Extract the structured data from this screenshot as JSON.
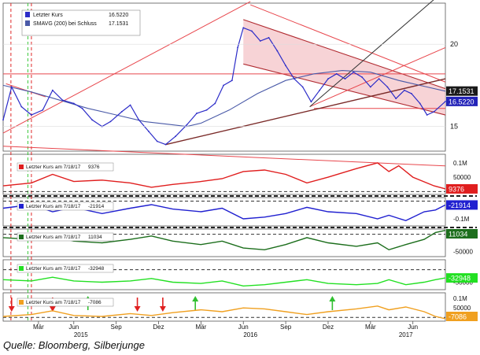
{
  "caption": "Quelle: Bloomberg, Silberjunge",
  "colors": {
    "price": "#2c2cc8",
    "sma": "#4a5aa8",
    "resistance": "#e8464c",
    "channel_fill": "#f4c4c8",
    "channel_edge": "#b02a30",
    "support": "#7a2a28",
    "trend_black": "#333333",
    "vline_red": "#e02828",
    "vline_green": "#38c838",
    "tag_price": "#2323b8",
    "tag_sma": "#1a1a1a",
    "panel1": "#e01e1e",
    "panel2": "#2020d0",
    "panel3": "#1c6e1c",
    "panel4": "#22e022",
    "panel5": "#f0a020",
    "arrow_red": "#e02020",
    "arrow_green": "#30c030"
  },
  "chart_data": [
    {
      "type": "line",
      "legend": [
        {
          "label": "Letzter Kurs",
          "value": "16.5220",
          "color_key": "price"
        },
        {
          "label": "SMAVG (200) bei Schluss",
          "value": "17.1531",
          "color_key": "sma"
        }
      ],
      "ylim": [
        13.5,
        22.5
      ],
      "yticks": [
        15,
        20
      ],
      "ytick_labels": [
        "15",
        "20"
      ],
      "last_value_tags": [
        {
          "label": "17.1531",
          "value": 17.1531,
          "color_key": "tag_sma"
        },
        {
          "label": "16.5220",
          "value": 16.522,
          "color_key": "tag_price"
        }
      ],
      "x_range": [
        0,
        31.3
      ],
      "x_unit": "months since Jan 2015",
      "series": [
        {
          "key": "price",
          "points": [
            [
              0,
              15.4
            ],
            [
              0.6,
              17.4
            ],
            [
              1.3,
              16.2
            ],
            [
              2,
              15.7
            ],
            [
              2.8,
              16.0
            ],
            [
              3.5,
              17.2
            ],
            [
              4.2,
              16.6
            ],
            [
              5,
              16.4
            ],
            [
              5.6,
              16.1
            ],
            [
              6.3,
              15.4
            ],
            [
              7,
              15.0
            ],
            [
              7.6,
              15.3
            ],
            [
              8.4,
              15.9
            ],
            [
              9,
              16.3
            ],
            [
              9.6,
              15.4
            ],
            [
              10.3,
              14.7
            ],
            [
              10.9,
              14.1
            ],
            [
              11.5,
              13.9
            ],
            [
              12.2,
              14.4
            ],
            [
              13,
              15.1
            ],
            [
              13.7,
              15.8
            ],
            [
              14.4,
              16.0
            ],
            [
              15,
              16.4
            ],
            [
              15.6,
              17.5
            ],
            [
              16.2,
              17.8
            ],
            [
              16.6,
              19.8
            ],
            [
              17,
              21.0
            ],
            [
              17.6,
              20.8
            ],
            [
              18.2,
              20.2
            ],
            [
              18.8,
              20.4
            ],
            [
              19.4,
              19.6
            ],
            [
              20,
              18.7
            ],
            [
              20.6,
              17.9
            ],
            [
              21.2,
              17.4
            ],
            [
              21.8,
              16.5
            ],
            [
              22.4,
              17.2
            ],
            [
              23,
              17.9
            ],
            [
              23.6,
              18.2
            ],
            [
              24.2,
              17.9
            ],
            [
              24.8,
              18.3
            ],
            [
              25.4,
              18.0
            ],
            [
              26,
              17.4
            ],
            [
              26.6,
              17.9
            ],
            [
              27.2,
              17.4
            ],
            [
              27.8,
              16.7
            ],
            [
              28.4,
              17.2
            ],
            [
              28.9,
              17.0
            ],
            [
              29.5,
              16.4
            ],
            [
              30,
              15.7
            ],
            [
              30.5,
              15.9
            ],
            [
              31.3,
              16.52
            ]
          ]
        },
        {
          "key": "sma",
          "points": [
            [
              0,
              17.5
            ],
            [
              2,
              17.1
            ],
            [
              4,
              16.6
            ],
            [
              6,
              16.1
            ],
            [
              8,
              15.7
            ],
            [
              10,
              15.3
            ],
            [
              12,
              15.1
            ],
            [
              13,
              15.0
            ],
            [
              14,
              15.2
            ],
            [
              16,
              16.0
            ],
            [
              18,
              17.0
            ],
            [
              20,
              17.8
            ],
            [
              22,
              18.2
            ],
            [
              24,
              18.4
            ],
            [
              26,
              18.3
            ],
            [
              28,
              17.8
            ],
            [
              30,
              17.4
            ],
            [
              31.3,
              17.15
            ]
          ]
        }
      ]
    },
    {
      "type": "line",
      "legend": {
        "label": "Letzter Kurs am 7/18/17",
        "value": "9376"
      },
      "yticks": [
        {
          "v": 100000,
          "label": "0.1M"
        },
        {
          "v": 50000,
          "label": "50000"
        }
      ],
      "ylim": [
        -10000,
        130000
      ],
      "last_value_tag": "9376",
      "color_key": "panel1",
      "points": [
        [
          0,
          20000
        ],
        [
          2,
          30000
        ],
        [
          3.5,
          60000
        ],
        [
          5,
          35000
        ],
        [
          7,
          40000
        ],
        [
          9,
          30000
        ],
        [
          10.5,
          15000
        ],
        [
          12,
          25000
        ],
        [
          14,
          35000
        ],
        [
          15.5,
          45000
        ],
        [
          17,
          70000
        ],
        [
          18.5,
          75000
        ],
        [
          20,
          60000
        ],
        [
          21.5,
          30000
        ],
        [
          23,
          50000
        ],
        [
          25,
          80000
        ],
        [
          26.5,
          100000
        ],
        [
          27.3,
          70000
        ],
        [
          28,
          90000
        ],
        [
          29,
          50000
        ],
        [
          30.5,
          20000
        ],
        [
          31.3,
          9376
        ]
      ]
    },
    {
      "type": "line",
      "legend": {
        "label": "Letzter Kurs am 7/18/17",
        "value": "-21914"
      },
      "yticks": [
        {
          "v": -100000,
          "label": "-0.1M"
        }
      ],
      "ylim": [
        -140000,
        20000
      ],
      "last_value_tag": "-21914",
      "color_key": "panel2",
      "points": [
        [
          0,
          -40000
        ],
        [
          2,
          -20000
        ],
        [
          3.5,
          -60000
        ],
        [
          5,
          -35000
        ],
        [
          7,
          -70000
        ],
        [
          9,
          -40000
        ],
        [
          10.5,
          -20000
        ],
        [
          12,
          -45000
        ],
        [
          14,
          -60000
        ],
        [
          15.5,
          -40000
        ],
        [
          17,
          -100000
        ],
        [
          18.5,
          -90000
        ],
        [
          20,
          -70000
        ],
        [
          21.5,
          -35000
        ],
        [
          23,
          -60000
        ],
        [
          25,
          -70000
        ],
        [
          26.5,
          -100000
        ],
        [
          27.3,
          -80000
        ],
        [
          28.5,
          -110000
        ],
        [
          29.8,
          -60000
        ],
        [
          30.6,
          -50000
        ],
        [
          31.3,
          -21914
        ]
      ]
    },
    {
      "type": "line",
      "legend": {
        "label": "Letzter Kurs am 7/18/17",
        "value": "11034"
      },
      "yticks": [
        {
          "v": -50000,
          "label": "-50000"
        }
      ],
      "ylim": [
        -65000,
        15000
      ],
      "last_value_tag": "11034",
      "color_key": "panel3",
      "points": [
        [
          0,
          -10000
        ],
        [
          2,
          -15000
        ],
        [
          3.5,
          -5000
        ],
        [
          5,
          -20000
        ],
        [
          7,
          -25000
        ],
        [
          9,
          -15000
        ],
        [
          10.5,
          -5000
        ],
        [
          12,
          -20000
        ],
        [
          14,
          -30000
        ],
        [
          15.5,
          -20000
        ],
        [
          17,
          -40000
        ],
        [
          18.5,
          -45000
        ],
        [
          20,
          -30000
        ],
        [
          21.5,
          -10000
        ],
        [
          23,
          -25000
        ],
        [
          25,
          -35000
        ],
        [
          26.5,
          -25000
        ],
        [
          27.3,
          -45000
        ],
        [
          28.5,
          -30000
        ],
        [
          29.8,
          -15000
        ],
        [
          30.6,
          5000
        ],
        [
          31.3,
          11034
        ]
      ]
    },
    {
      "type": "line",
      "legend": {
        "label": "Letzter Kurs am 7/18/17",
        "value": "-32948"
      },
      "yticks": [
        {
          "v": -50000,
          "label": "-50000"
        }
      ],
      "ylim": [
        -80000,
        40000
      ],
      "last_value_tag": "-32948",
      "color_key": "panel4",
      "points": [
        [
          0,
          -40000
        ],
        [
          2,
          -45000
        ],
        [
          3.5,
          -30000
        ],
        [
          5,
          -45000
        ],
        [
          7,
          -50000
        ],
        [
          9,
          -45000
        ],
        [
          10.5,
          -35000
        ],
        [
          12,
          -50000
        ],
        [
          14,
          -55000
        ],
        [
          15.5,
          -45000
        ],
        [
          17,
          -65000
        ],
        [
          18.5,
          -60000
        ],
        [
          20,
          -50000
        ],
        [
          21.5,
          -40000
        ],
        [
          23,
          -55000
        ],
        [
          25,
          -60000
        ],
        [
          26.5,
          -55000
        ],
        [
          27.3,
          -40000
        ],
        [
          28.5,
          -60000
        ],
        [
          29.8,
          -50000
        ],
        [
          30.6,
          -40000
        ],
        [
          31.3,
          -32948
        ]
      ]
    },
    {
      "type": "line",
      "legend": {
        "label": "Letzter Kurs am 7/18/17",
        "value": "-7086"
      },
      "yticks": [
        {
          "v": 100000,
          "label": "0.1M"
        },
        {
          "v": 50000,
          "label": "50000"
        }
      ],
      "ylim": [
        -20000,
        130000
      ],
      "last_value_tag": "-7086",
      "color_key": "panel5",
      "points": [
        [
          0,
          5000
        ],
        [
          2,
          15000
        ],
        [
          3.5,
          35000
        ],
        [
          5,
          10000
        ],
        [
          7,
          5000
        ],
        [
          9,
          20000
        ],
        [
          10.5,
          10000
        ],
        [
          12,
          25000
        ],
        [
          14,
          40000
        ],
        [
          15.5,
          30000
        ],
        [
          17,
          50000
        ],
        [
          18.5,
          45000
        ],
        [
          20,
          30000
        ],
        [
          21.5,
          15000
        ],
        [
          23,
          30000
        ],
        [
          25,
          45000
        ],
        [
          26.5,
          60000
        ],
        [
          27.3,
          40000
        ],
        [
          28.5,
          55000
        ],
        [
          29.8,
          30000
        ],
        [
          30.6,
          5000
        ],
        [
          31.3,
          -7086
        ]
      ]
    }
  ],
  "x_axis": {
    "months": [
      {
        "x": 2.5,
        "label": "Mär"
      },
      {
        "x": 5,
        "label": "Jun"
      },
      {
        "x": 8,
        "label": "Sep"
      },
      {
        "x": 11,
        "label": "Dez"
      },
      {
        "x": 14,
        "label": "Mär"
      },
      {
        "x": 17,
        "label": "Jun"
      },
      {
        "x": 20,
        "label": "Sep"
      },
      {
        "x": 23,
        "label": "Dez"
      },
      {
        "x": 26,
        "label": "Mär"
      },
      {
        "x": 29,
        "label": "Jun"
      }
    ],
    "years": [
      {
        "x": 5.5,
        "label": "2015"
      },
      {
        "x": 17.5,
        "label": "2016"
      },
      {
        "x": 28.5,
        "label": "2017"
      }
    ]
  }
}
